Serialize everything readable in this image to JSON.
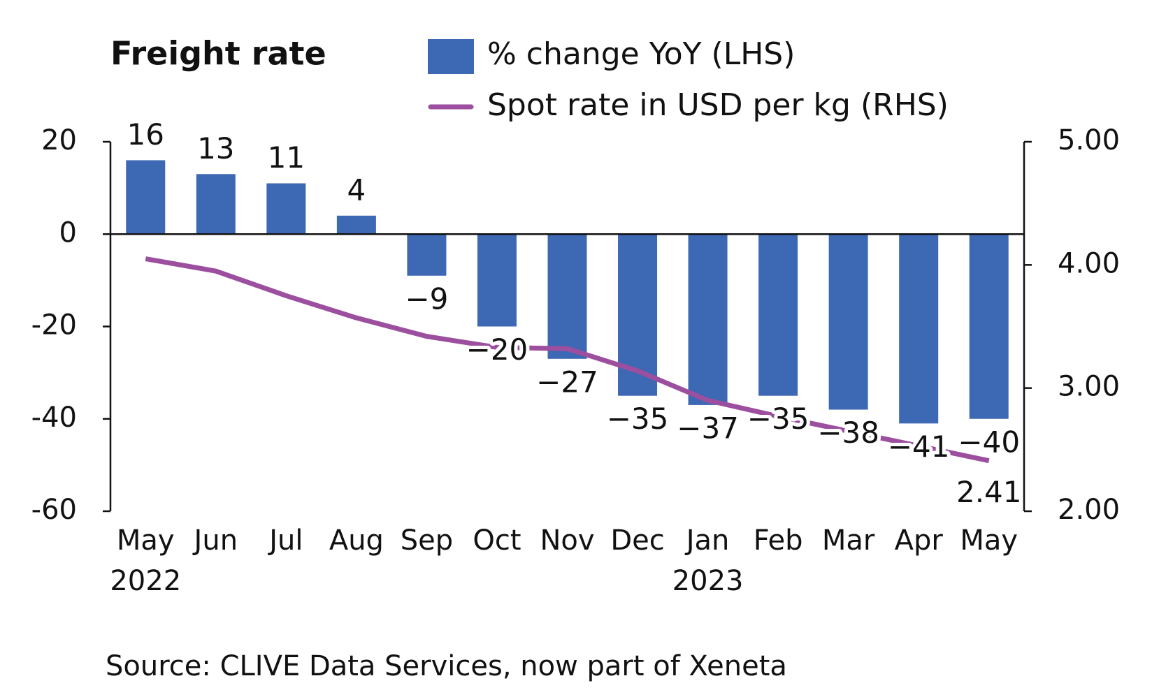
{
  "chart_data": {
    "type": "bar_line",
    "title": "Freight rate",
    "categories": [
      "May",
      "Jun",
      "Jul",
      "Aug",
      "Sep",
      "Oct",
      "Nov",
      "Dec",
      "Jan",
      "Feb",
      "Mar",
      "Apr",
      "May"
    ],
    "category_years": [
      "2022",
      null,
      null,
      null,
      null,
      null,
      null,
      null,
      "2023",
      null,
      null,
      null,
      null
    ],
    "series": [
      {
        "name": "% change YoY (LHS)",
        "type": "bar",
        "color": "#3d68b4",
        "values": [
          16,
          13,
          11,
          4,
          -9,
          -20,
          -27,
          -35,
          -37,
          -35,
          -38,
          -41,
          -40
        ],
        "value_labels": [
          "16",
          "13",
          "11",
          "4",
          "−9",
          "−20",
          "−27",
          "−35",
          "−37",
          "−35",
          "−38",
          "−41",
          "−40"
        ]
      },
      {
        "name": "Spot rate in USD per kg (RHS)",
        "type": "line",
        "axis": "y2",
        "color": "#9c4f9f",
        "values": [
          4.05,
          3.95,
          3.75,
          3.57,
          3.42,
          3.33,
          3.32,
          3.14,
          2.9,
          2.77,
          2.65,
          2.53,
          2.41
        ],
        "label_last": true
      }
    ],
    "ylim": [
      -60,
      20
    ],
    "yticks": [
      -60,
      -40,
      -20,
      0,
      20
    ],
    "y2lim": [
      2,
      5
    ],
    "y2ticks": [
      {
        "value": 2,
        "label": "2.00"
      },
      {
        "value": 3,
        "label": "3.00"
      },
      {
        "value": 4,
        "label": "4.00"
      },
      {
        "value": 5,
        "label": "5.00"
      }
    ],
    "grid": false,
    "source": "Source: CLIVE Data Services, now part of Xeneta"
  }
}
